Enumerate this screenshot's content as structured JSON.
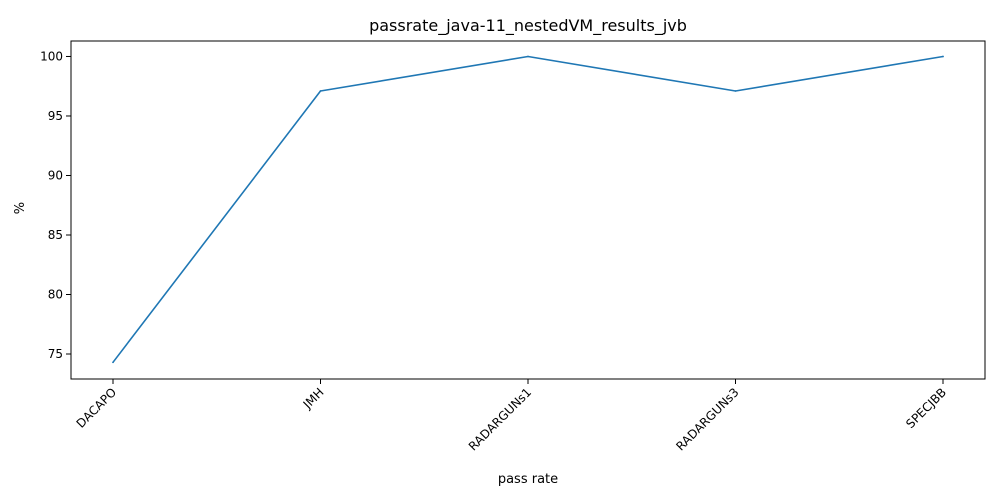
{
  "chart_data": {
    "type": "line",
    "title": "passrate_java-11_nestedVM_results_jvb",
    "xlabel": "pass rate",
    "ylabel": "%",
    "categories": [
      "DACAPO",
      "JMH",
      "RADARGUNs1",
      "RADARGUNs3",
      "SPECJBB"
    ],
    "series": [
      {
        "values": [
          74.3,
          97.1,
          100.0,
          97.1,
          100.0
        ]
      }
    ],
    "ylim": [
      72.9,
      101.3
    ],
    "yticks": [
      75,
      80,
      85,
      90,
      95,
      100
    ],
    "grid": false,
    "line_color": "#1f77b4",
    "x_tick_rotation": 45
  }
}
